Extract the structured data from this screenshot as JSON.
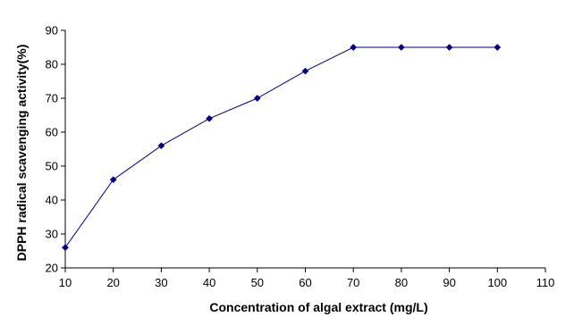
{
  "chart_data": {
    "type": "line",
    "title": "",
    "xlabel": "Concentration of algal extract (mg/L)",
    "ylabel": "DPPH radical scavenging activity(%)",
    "xlim": [
      10,
      110
    ],
    "ylim": [
      20,
      90
    ],
    "x_ticks": [
      "10",
      "20",
      "30",
      "40",
      "50",
      "60",
      "70",
      "80",
      "90",
      "100",
      "110"
    ],
    "y_ticks": [
      "20",
      "30",
      "40",
      "50",
      "60",
      "70",
      "80",
      "90"
    ],
    "grid": false,
    "legend": "none",
    "series": [
      {
        "x": [
          10,
          20,
          30,
          40,
          50,
          60,
          70,
          80,
          90,
          100
        ],
        "y": [
          26,
          46,
          56,
          64,
          70,
          78,
          85,
          85,
          85,
          85
        ],
        "color": "#000080",
        "marker": "diamond"
      }
    ]
  }
}
